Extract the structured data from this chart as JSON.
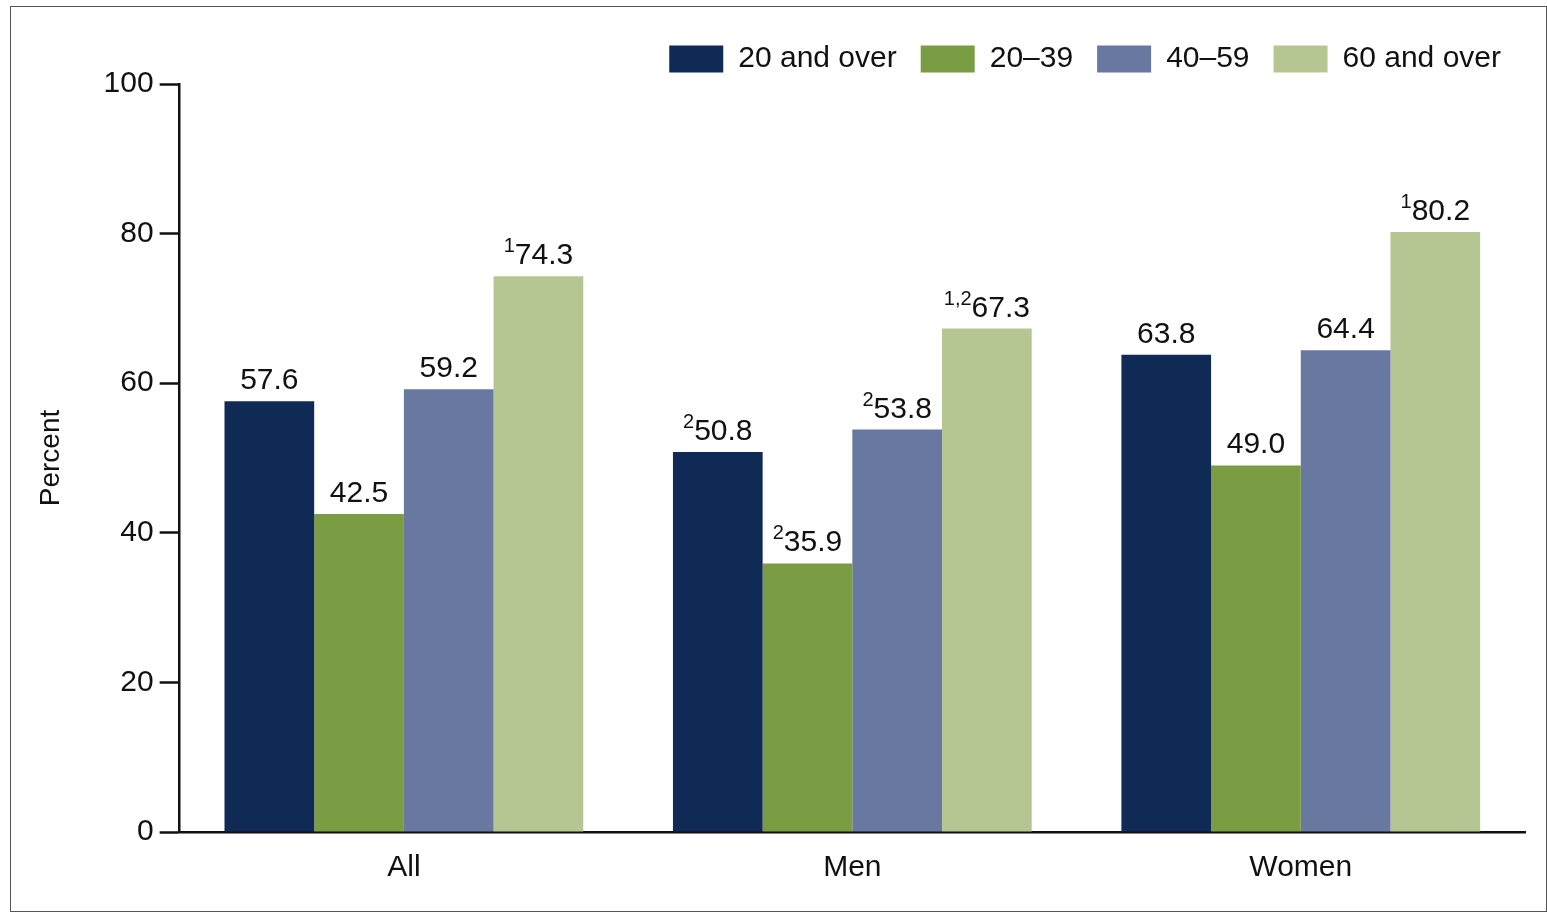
{
  "chart_data": {
    "type": "bar",
    "ylabel": "Percent",
    "categories": [
      "All",
      "Men",
      "Women"
    ],
    "series": [
      {
        "name": "20 and over",
        "color": "#0f2a55",
        "values": [
          57.6,
          50.8,
          63.8
        ],
        "value_labels": [
          "57.6",
          "$^{2}$50.8",
          "63.8"
        ]
      },
      {
        "name": "20–39",
        "color": "#7a9c43",
        "values": [
          42.5,
          35.9,
          49.0
        ],
        "value_labels": [
          "42.5",
          "$^{2}$35.9",
          "49.0"
        ]
      },
      {
        "name": "40–59",
        "color": "#6878a0",
        "values": [
          59.2,
          53.8,
          64.4
        ],
        "value_labels": [
          "59.2",
          "$^{2}$53.8",
          "64.4"
        ]
      },
      {
        "name": "60 and over",
        "color": "#b5c692",
        "values": [
          74.3,
          67.3,
          80.2
        ],
        "value_labels": [
          "$^{1}$74.3",
          "$^{1,2}$67.3",
          "$^{1}$80.2"
        ]
      }
    ],
    "ylim": [
      0,
      100
    ],
    "yticks": [
      0,
      20,
      40,
      60,
      80,
      100
    ],
    "grid": false,
    "legend": "top right"
  }
}
